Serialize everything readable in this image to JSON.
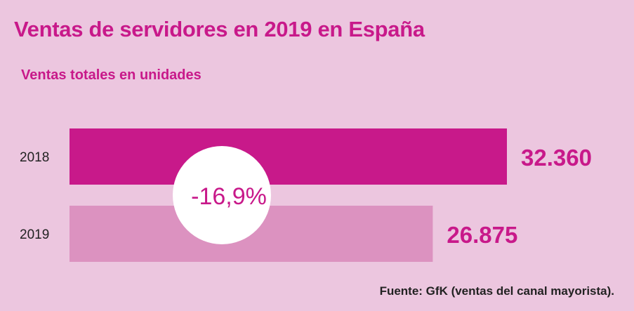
{
  "chart_data": {
    "type": "bar",
    "orientation": "horizontal",
    "title": "Ventas de servidores en 2019 en España",
    "subtitle": "Ventas totales en unidades",
    "categories": [
      "2018",
      "2019"
    ],
    "values": [
      32360,
      26875
    ],
    "value_labels": [
      "32.360",
      "26.875"
    ],
    "annotation": "-16,9%",
    "colors": [
      "#c8198a",
      "#dc92c0"
    ],
    "label_color": "#c8198a",
    "background": "#ecc6df",
    "source": "Fuente: GfK (ventas del canal mayorista)."
  }
}
